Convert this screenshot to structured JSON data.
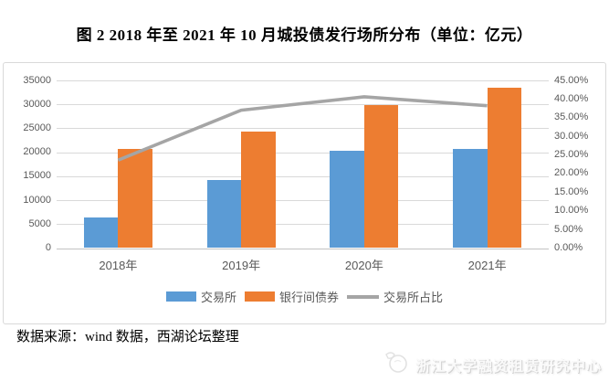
{
  "title": "图 2 2018 年至 2021 年 10 月城投债发行场所分布（单位：亿元）",
  "source_note": "数据来源：wind 数据，西湖论坛整理",
  "watermark": "浙江大学融资租赁研究中心",
  "colors": {
    "exchange_bar": "#5B9BD5",
    "interbank_bar": "#ED7D31",
    "ratio_line": "#A5A5A5",
    "gridline": "#D9D9D9",
    "axis_text": "#595959"
  },
  "chart_data": {
    "type": "bar",
    "subtype": "combo-bar-line",
    "categories": [
      "2018年",
      "2019年",
      "2020年",
      "2021年"
    ],
    "series": [
      {
        "key": "exchange",
        "name": "交易所",
        "type": "bar",
        "axis": "left",
        "color": "#5B9BD5",
        "values": [
          6400,
          14300,
          20400,
          20600
        ]
      },
      {
        "key": "interbank",
        "name": "银行间债券",
        "type": "bar",
        "axis": "left",
        "color": "#ED7D31",
        "values": [
          20600,
          24400,
          29900,
          33500
        ]
      },
      {
        "key": "exchange-ratio",
        "name": "交易所占比",
        "type": "line",
        "axis": "right",
        "color": "#A5A5A5",
        "values": [
          23.6,
          37.0,
          40.6,
          38.2
        ]
      }
    ],
    "left_axis": {
      "min": 0,
      "max": 35000,
      "step": 5000,
      "ticks": [
        "0",
        "5000",
        "10000",
        "15000",
        "20000",
        "25000",
        "30000",
        "35000"
      ]
    },
    "right_axis": {
      "min": 0,
      "max": 45,
      "step": 5,
      "ticks": [
        "0.00%",
        "5.00%",
        "10.00%",
        "15.00%",
        "20.00%",
        "25.00%",
        "30.00%",
        "35.00%",
        "40.00%",
        "45.00%"
      ]
    },
    "grid": true,
    "legend_position": "bottom"
  }
}
